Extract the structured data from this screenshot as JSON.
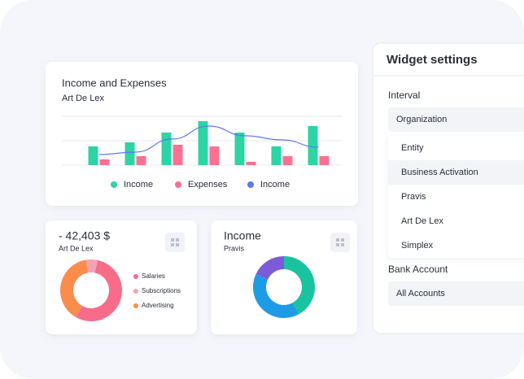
{
  "chart_data": [
    {
      "type": "bar",
      "title": "Income and Expenses",
      "subtitle": "Art De Lex",
      "categories": [
        null,
        null,
        null,
        null,
        null,
        null,
        null
      ],
      "series": [
        {
          "name": "Income",
          "color": "#2dd4a4",
          "values": [
            23,
            28,
            40,
            54,
            40,
            23,
            48
          ]
        },
        {
          "name": "Expenses",
          "color": "#fb7190",
          "values": [
            7,
            11,
            25,
            23,
            4,
            11,
            11
          ]
        },
        {
          "name": "Income",
          "color": "#5b78f0",
          "type": "line",
          "values": [
            13,
            16,
            32,
            48,
            36,
            31,
            22
          ]
        }
      ],
      "ylim": [
        0,
        60
      ],
      "yticks": [
        0,
        30,
        60
      ],
      "grid": true
    },
    {
      "type": "pie",
      "title": "- 42,403 $",
      "subtitle": "Art De Lex",
      "direction": "counterclockwise",
      "categories": [
        "Salaries",
        "Subscriptions",
        "Advertising"
      ],
      "values": [
        55,
        6,
        39
      ],
      "colors": [
        "#f86c8a",
        "#f4a3b4",
        "#fb8c4c"
      ],
      "legend": "right"
    },
    {
      "type": "pie",
      "title": "Income",
      "subtitle": "Pravis",
      "direction": "clockwise",
      "categories": [
        null,
        null,
        null
      ],
      "values": [
        42,
        40,
        18
      ],
      "colors": [
        "#19c3a0",
        "#1d9ce5",
        "#7b5bd6"
      ]
    }
  ],
  "widget_settings": {
    "title": "Widget settings",
    "interval_label": "Interval",
    "interval_value": "Organization",
    "options": [
      "Entity",
      "Business Activation",
      "Pravis",
      "Art De Lex",
      "Simplex"
    ],
    "highlighted_option": 1,
    "bank_account_label": "Bank Account",
    "bank_account_value": "All Accounts"
  }
}
